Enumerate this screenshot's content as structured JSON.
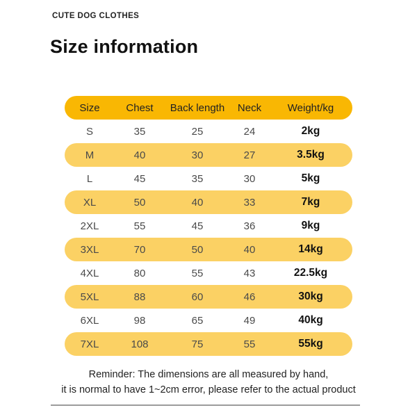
{
  "brand": "CUTE DOG CLOTHES",
  "title": "Size information",
  "colors": {
    "header_bg": "#F9B703",
    "row_alt_bg": "#FBD164",
    "divider": "#9B9B9B",
    "text_dark": "#222222",
    "text_grey": "#4A4A4A"
  },
  "table": {
    "columns": [
      "Size",
      "Chest",
      "Back length",
      "Neck",
      "Weight/kg"
    ],
    "column_keys": [
      "size",
      "chest",
      "back_length",
      "neck",
      "weight"
    ],
    "rows": [
      {
        "size": "S",
        "chest": "35",
        "back_length": "25",
        "neck": "24",
        "weight": "2kg",
        "highlight": false
      },
      {
        "size": "M",
        "chest": "40",
        "back_length": "30",
        "neck": "27",
        "weight": "3.5kg",
        "highlight": true
      },
      {
        "size": "L",
        "chest": "45",
        "back_length": "35",
        "neck": "30",
        "weight": "5kg",
        "highlight": false
      },
      {
        "size": "XL",
        "chest": "50",
        "back_length": "40",
        "neck": "33",
        "weight": "7kg",
        "highlight": true
      },
      {
        "size": "2XL",
        "chest": "55",
        "back_length": "45",
        "neck": "36",
        "weight": "9kg",
        "highlight": false
      },
      {
        "size": "3XL",
        "chest": "70",
        "back_length": "50",
        "neck": "40",
        "weight": "14kg",
        "highlight": true
      },
      {
        "size": "4XL",
        "chest": "80",
        "back_length": "55",
        "neck": "43",
        "weight": "22.5kg",
        "highlight": false
      },
      {
        "size": "5XL",
        "chest": "88",
        "back_length": "60",
        "neck": "46",
        "weight": "30kg",
        "highlight": true
      },
      {
        "size": "6XL",
        "chest": "98",
        "back_length": "65",
        "neck": "49",
        "weight": "40kg",
        "highlight": false
      },
      {
        "size": "7XL",
        "chest": "108",
        "back_length": "75",
        "neck": "55",
        "weight": "55kg",
        "highlight": true
      }
    ]
  },
  "reminder": {
    "line1": "Reminder: The dimensions are all measured by hand,",
    "line2": "it is normal to have 1~2cm error, please refer to the actual product"
  }
}
